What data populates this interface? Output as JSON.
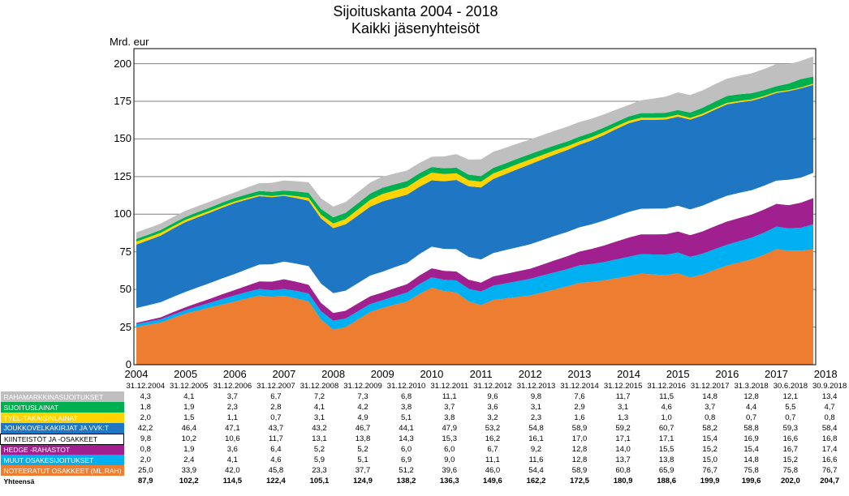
{
  "title": "Sijoituskanta 2004 - 2018",
  "subtitle": "Kaikki jäsenyhteisöt",
  "y_label": "Mrd. eur",
  "ylim": [
    0,
    200
  ],
  "ytick_step": 25,
  "yticks": [
    0,
    25,
    50,
    75,
    100,
    125,
    150,
    175,
    200
  ],
  "x_years": [
    2004,
    2005,
    2006,
    2007,
    2008,
    2009,
    2010,
    2011,
    2012,
    2013,
    2014,
    2015,
    2016,
    2017,
    2018
  ],
  "plot_bg": "#ffffff",
  "grid_color": "#7f7f7f",
  "axis_color": "#000000",
  "categories": [
    {
      "key": "raha",
      "label": "RAHAMARKKINASIJOITUKSET",
      "color": "#bfbfbf"
    },
    {
      "key": "sijoitus",
      "label": "SIJOITUSLAINAT",
      "color": "#00b050"
    },
    {
      "key": "tyel",
      "label": "TYEL-TAKAISINLAINAT",
      "color": "#ffd300"
    },
    {
      "key": "joukko",
      "label": "JOUKKOVELKAKIRJAT JA VVK:T",
      "color": "#1f77c4"
    },
    {
      "key": "kiint",
      "label": "KIINTEISTÖT JA -OSAKKEET",
      "color": "#ffffff"
    },
    {
      "key": "hedge",
      "label": "HEDGE -RAHASTOT",
      "color": "#a02090"
    },
    {
      "key": "muut",
      "label": "MUUT OSAKESIJOITUKSET",
      "color": "#00b0f0"
    },
    {
      "key": "noteer",
      "label": "NOTEERATUT OSAKKEET (ML.RAH)",
      "color": "#ed7d31"
    }
  ],
  "stack_order": [
    "noteer",
    "muut",
    "hedge",
    "kiint",
    "joukko",
    "tyel",
    "sijoitus",
    "raha"
  ],
  "col_headers": [
    "31.12.2004",
    "31.12.2005",
    "31.12.2006",
    "31.12.2007",
    "31.12.2008",
    "31.12.2009",
    "31.12.2010",
    "31.12.2011",
    "31.12.2012",
    "31.12.2013",
    "31.12.2014",
    "31.12.2015",
    "31.12.2016",
    "31.12.2017",
    "31.3.2018",
    "30.6.2018",
    "30.9.2018"
  ],
  "rows": {
    "raha": [
      4.3,
      4.1,
      3.7,
      6.7,
      7.2,
      7.3,
      6.8,
      11.1,
      9.6,
      9.8,
      7.6,
      11.7,
      11.5,
      14.8,
      12.8,
      12.1,
      13.4
    ],
    "sijoitus": [
      1.8,
      1.9,
      2.3,
      2.8,
      4.1,
      4.2,
      3.8,
      3.7,
      3.6,
      3.1,
      2.9,
      3.1,
      4.6,
      3.7,
      4.4,
      5.5,
      4.7
    ],
    "tyel": [
      2.0,
      1.5,
      1.1,
      0.7,
      3.1,
      4.9,
      5.1,
      3.8,
      3.2,
      2.3,
      1.6,
      1.3,
      1.0,
      0.8,
      0.7,
      0.7,
      0.8
    ],
    "joukko": [
      42.2,
      46.4,
      47.1,
      43.7,
      43.2,
      46.7,
      44.1,
      47.9,
      53.2,
      54.8,
      58.9,
      59.2,
      60.7,
      58.2,
      58.8,
      59.3,
      58.4
    ],
    "kiint": [
      9.8,
      10.2,
      10.6,
      11.7,
      13.1,
      13.8,
      14.3,
      15.3,
      16.2,
      16.1,
      17.0,
      17.1,
      17.1,
      15.4,
      16.9,
      16.6,
      16.8
    ],
    "hedge": [
      0.8,
      1.9,
      3.6,
      6.4,
      5.2,
      5.2,
      6.0,
      6.0,
      6.7,
      9.2,
      12.8,
      14.0,
      15.5,
      15.2,
      15.4,
      16.7,
      17.4
    ],
    "muut": [
      2.0,
      2.4,
      4.1,
      4.6,
      5.9,
      5.1,
      6.9,
      9.0,
      11.1,
      11.6,
      12.8,
      13.7,
      13.8,
      15.0,
      14.8,
      15.2,
      16.6
    ],
    "noteer": [
      25.0,
      33.9,
      42.0,
      45.8,
      23.3,
      37.7,
      51.2,
      39.6,
      46.0,
      54.4,
      58.9,
      60.8,
      65.9,
      76.7,
      75.8,
      75.8,
      76.7
    ]
  },
  "total_label": "Yhteensä",
  "totals": [
    87.9,
    102.2,
    114.5,
    122.4,
    105.1,
    124.9,
    138.2,
    136.3,
    149.6,
    162.2,
    172.5,
    180.9,
    188.6,
    199.9,
    199.6,
    202.0,
    204.7
  ],
  "label_bg": "#000000",
  "quarterly": {
    "noteer": [
      25.0,
      26.5,
      28.0,
      31.0,
      33.9,
      36.0,
      38.0,
      40.0,
      42.0,
      44.0,
      46.0,
      45.0,
      45.8,
      44.0,
      42.0,
      30.0,
      23.3,
      25.0,
      30.0,
      35.0,
      37.7,
      40.0,
      42.0,
      47.0,
      51.2,
      49.0,
      48.0,
      42.0,
      39.6,
      43.0,
      44.0,
      45.0,
      46.0,
      48.0,
      50.0,
      52.0,
      54.4,
      55.0,
      56.0,
      57.5,
      58.9,
      60.5,
      60.0,
      59.5,
      60.8,
      58.0,
      60.0,
      63.0,
      65.9,
      68.0,
      70.0,
      73.0,
      76.7,
      75.8,
      75.8,
      76.7
    ],
    "muut": [
      2.0,
      2.1,
      2.2,
      2.3,
      2.4,
      2.8,
      3.2,
      3.7,
      4.1,
      4.3,
      4.4,
      4.5,
      4.6,
      5.0,
      5.3,
      5.6,
      5.9,
      5.7,
      5.5,
      5.3,
      5.1,
      5.5,
      6.0,
      6.5,
      6.9,
      7.4,
      8.0,
      8.5,
      9.0,
      9.5,
      10.0,
      10.5,
      11.1,
      11.3,
      11.4,
      11.5,
      11.6,
      11.9,
      12.2,
      12.5,
      12.8,
      13.0,
      13.2,
      13.5,
      13.7,
      13.7,
      13.8,
      13.8,
      13.8,
      14.1,
      14.5,
      14.8,
      15.0,
      14.8,
      15.2,
      16.6
    ],
    "hedge": [
      0.8,
      1.1,
      1.4,
      1.7,
      1.9,
      2.3,
      2.7,
      3.2,
      3.6,
      4.3,
      5.0,
      5.7,
      6.4,
      6.1,
      5.8,
      5.5,
      5.2,
      5.2,
      5.2,
      5.2,
      5.2,
      5.4,
      5.6,
      5.8,
      6.0,
      6.0,
      6.0,
      6.0,
      6.0,
      6.2,
      6.4,
      6.6,
      6.7,
      7.3,
      8.0,
      8.6,
      9.2,
      10.1,
      11.0,
      11.9,
      12.8,
      13.1,
      13.4,
      13.7,
      14.0,
      14.4,
      14.8,
      15.2,
      15.5,
      15.4,
      15.3,
      15.3,
      15.2,
      15.4,
      16.7,
      17.4
    ],
    "kiint": [
      9.8,
      9.9,
      10.0,
      10.1,
      10.2,
      10.3,
      10.4,
      10.5,
      10.6,
      10.9,
      11.2,
      11.5,
      11.7,
      12.0,
      12.4,
      12.8,
      13.1,
      13.3,
      13.5,
      13.7,
      13.8,
      13.9,
      14.0,
      14.2,
      14.3,
      14.5,
      14.8,
      15.1,
      15.3,
      15.5,
      15.8,
      16.0,
      16.2,
      16.2,
      16.2,
      16.1,
      16.1,
      16.3,
      16.6,
      16.8,
      17.0,
      17.0,
      17.1,
      17.1,
      17.1,
      17.1,
      17.1,
      17.1,
      17.1,
      16.7,
      16.2,
      15.8,
      15.4,
      16.9,
      16.6,
      16.8
    ],
    "joukko": [
      42.2,
      43.2,
      44.3,
      45.4,
      46.4,
      46.6,
      46.8,
      47.0,
      47.1,
      46.3,
      45.4,
      44.6,
      43.7,
      43.6,
      43.4,
      43.3,
      43.2,
      44.1,
      44.9,
      45.8,
      46.7,
      46.0,
      45.4,
      44.7,
      44.1,
      45.0,
      46.0,
      46.9,
      47.9,
      49.2,
      50.5,
      51.9,
      53.2,
      53.6,
      54.0,
      54.4,
      54.8,
      55.8,
      56.8,
      57.9,
      58.9,
      59.0,
      59.0,
      59.1,
      59.2,
      59.6,
      59.9,
      60.3,
      60.7,
      60.1,
      59.4,
      58.8,
      58.2,
      58.8,
      59.3,
      58.4
    ],
    "tyel": [
      2.0,
      1.9,
      1.8,
      1.6,
      1.5,
      1.4,
      1.3,
      1.2,
      1.1,
      1.0,
      0.9,
      0.8,
      0.7,
      1.3,
      1.9,
      2.5,
      3.1,
      3.5,
      4.0,
      4.5,
      4.9,
      5.0,
      5.0,
      5.1,
      5.1,
      4.8,
      4.4,
      4.1,
      3.8,
      3.7,
      3.5,
      3.4,
      3.2,
      3.0,
      2.8,
      2.5,
      2.3,
      2.1,
      2.0,
      1.8,
      1.6,
      1.5,
      1.4,
      1.4,
      1.3,
      1.2,
      1.2,
      1.1,
      1.0,
      1.0,
      0.9,
      0.9,
      0.8,
      0.7,
      0.7,
      0.8
    ],
    "sijoitus": [
      1.8,
      1.8,
      1.9,
      1.9,
      1.9,
      2.0,
      2.1,
      2.2,
      2.3,
      2.4,
      2.5,
      2.7,
      2.8,
      3.1,
      3.4,
      3.8,
      4.1,
      4.1,
      4.2,
      4.2,
      4.2,
      4.1,
      4.0,
      3.9,
      3.8,
      3.8,
      3.7,
      3.7,
      3.7,
      3.7,
      3.6,
      3.6,
      3.6,
      3.5,
      3.3,
      3.2,
      3.1,
      3.0,
      3.0,
      2.9,
      2.9,
      3.0,
      3.0,
      3.1,
      3.1,
      3.5,
      3.9,
      4.2,
      4.6,
      4.4,
      4.1,
      3.9,
      3.7,
      4.4,
      5.5,
      4.7
    ],
    "raha": [
      4.3,
      4.3,
      4.2,
      4.2,
      4.1,
      4.0,
      3.9,
      3.8,
      3.7,
      4.5,
      5.2,
      6.0,
      6.7,
      6.8,
      7.0,
      7.1,
      7.2,
      7.2,
      7.3,
      7.3,
      7.3,
      7.2,
      7.0,
      6.9,
      6.8,
      7.9,
      9.0,
      10.0,
      11.1,
      10.7,
      10.4,
      10.0,
      9.6,
      9.7,
      9.7,
      9.8,
      9.8,
      9.3,
      8.7,
      8.2,
      7.6,
      8.6,
      9.7,
      10.7,
      11.7,
      11.7,
      11.6,
      11.6,
      11.5,
      12.3,
      13.2,
      14.0,
      14.8,
      12.8,
      12.1,
      13.4
    ]
  }
}
